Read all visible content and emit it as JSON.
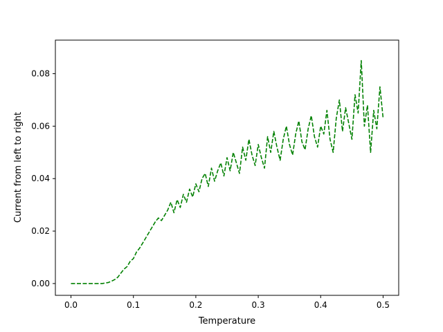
{
  "chart_data": {
    "type": "line",
    "title": "",
    "xlabel": "Temperature",
    "ylabel": "Current from left to right",
    "xlim": [
      -0.025,
      0.525
    ],
    "ylim": [
      -0.0045,
      0.0928
    ],
    "xticks": [
      {
        "value": 0.0,
        "label": "0.0"
      },
      {
        "value": 0.1,
        "label": "0.1"
      },
      {
        "value": 0.2,
        "label": "0.2"
      },
      {
        "value": 0.3,
        "label": "0.3"
      },
      {
        "value": 0.4,
        "label": "0.4"
      },
      {
        "value": 0.5,
        "label": "0.5"
      }
    ],
    "yticks": [
      {
        "value": 0.0,
        "label": "0.00"
      },
      {
        "value": 0.02,
        "label": "0.02"
      },
      {
        "value": 0.04,
        "label": "0.04"
      },
      {
        "value": 0.06,
        "label": "0.06"
      },
      {
        "value": 0.08,
        "label": "0.08"
      }
    ],
    "grid": false,
    "legend": "none",
    "series": [
      {
        "color": "#008000",
        "line_style": "dashed",
        "x": [
          0.0,
          0.01,
          0.02,
          0.03,
          0.04,
          0.05,
          0.055,
          0.06,
          0.065,
          0.07,
          0.075,
          0.08,
          0.085,
          0.09,
          0.095,
          0.1,
          0.105,
          0.11,
          0.115,
          0.12,
          0.125,
          0.13,
          0.135,
          0.14,
          0.145,
          0.15,
          0.155,
          0.16,
          0.165,
          0.17,
          0.175,
          0.18,
          0.185,
          0.19,
          0.195,
          0.2,
          0.205,
          0.21,
          0.215,
          0.22,
          0.225,
          0.23,
          0.235,
          0.24,
          0.245,
          0.25,
          0.255,
          0.26,
          0.265,
          0.27,
          0.275,
          0.28,
          0.285,
          0.29,
          0.295,
          0.3,
          0.305,
          0.31,
          0.315,
          0.32,
          0.325,
          0.33,
          0.335,
          0.34,
          0.345,
          0.35,
          0.355,
          0.36,
          0.365,
          0.37,
          0.375,
          0.38,
          0.385,
          0.39,
          0.395,
          0.4,
          0.405,
          0.41,
          0.415,
          0.42,
          0.425,
          0.43,
          0.435,
          0.44,
          0.445,
          0.45,
          0.455,
          0.46,
          0.465,
          0.47,
          0.475,
          0.48,
          0.485,
          0.49,
          0.495,
          0.5
        ],
        "y": [
          0.0,
          0.0,
          0.0,
          0.0,
          0.0,
          0.0,
          0.0002,
          0.0004,
          0.0009,
          0.0015,
          0.0024,
          0.004,
          0.0055,
          0.0065,
          0.0085,
          0.0095,
          0.012,
          0.0135,
          0.0155,
          0.0175,
          0.0195,
          0.0215,
          0.0235,
          0.025,
          0.024,
          0.026,
          0.028,
          0.031,
          0.027,
          0.032,
          0.029,
          0.034,
          0.031,
          0.036,
          0.033,
          0.038,
          0.035,
          0.04,
          0.042,
          0.037,
          0.044,
          0.039,
          0.043,
          0.046,
          0.041,
          0.048,
          0.043,
          0.05,
          0.046,
          0.042,
          0.052,
          0.047,
          0.055,
          0.049,
          0.045,
          0.053,
          0.048,
          0.044,
          0.056,
          0.05,
          0.058,
          0.052,
          0.047,
          0.055,
          0.06,
          0.053,
          0.049,
          0.057,
          0.062,
          0.054,
          0.051,
          0.059,
          0.064,
          0.056,
          0.052,
          0.06,
          0.057,
          0.066,
          0.055,
          0.05,
          0.063,
          0.07,
          0.058,
          0.067,
          0.061,
          0.055,
          0.072,
          0.065,
          0.085,
          0.06,
          0.068,
          0.05,
          0.066,
          0.059,
          0.075,
          0.063
        ]
      }
    ]
  }
}
